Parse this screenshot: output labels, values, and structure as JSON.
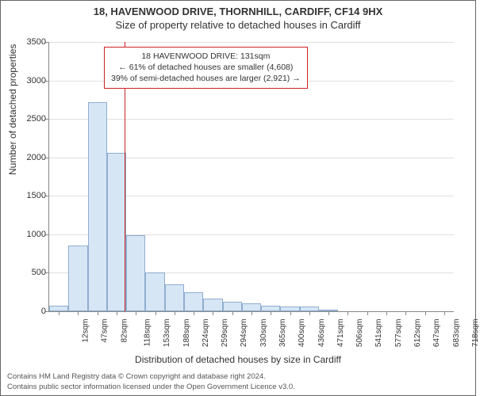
{
  "title_main": "18, HAVENWOOD DRIVE, THORNHILL, CARDIFF, CF14 9HX",
  "title_sub": "Size of property relative to detached houses in Cardiff",
  "ylabel": "Number of detached properties",
  "xlabel": "Distribution of detached houses by size in Cardiff",
  "chart": {
    "type": "histogram",
    "ylim": [
      0,
      3500
    ],
    "ytick_step": 500,
    "categories": [
      "12sqm",
      "47sqm",
      "82sqm",
      "118sqm",
      "153sqm",
      "188sqm",
      "224sqm",
      "259sqm",
      "294sqm",
      "330sqm",
      "365sqm",
      "400sqm",
      "436sqm",
      "471sqm",
      "506sqm",
      "541sqm",
      "577sqm",
      "612sqm",
      "647sqm",
      "683sqm",
      "718sqm"
    ],
    "values": [
      70,
      850,
      2720,
      2060,
      990,
      500,
      350,
      250,
      170,
      120,
      100,
      70,
      60,
      60,
      6,
      3,
      3,
      3,
      2,
      2,
      2
    ],
    "bar_fill": "#d6e6f5",
    "bar_border": "#8faed0",
    "grid_color": "#e0e0e0",
    "background_color": "#ffffff",
    "bar_width_ratio": 1.0,
    "marker_value_sqm": 131,
    "marker_color": "#cc2222",
    "label_fontsize": 12,
    "tick_fontsize": 11
  },
  "annotation": {
    "line1": "18 HAVENWOOD DRIVE: 131sqm",
    "line2": "← 61% of detached houses are smaller (4,608)",
    "line3": "39% of semi-detached houses are larger (2,921) →",
    "border_color": "#cc2222"
  },
  "attribution": {
    "line1": "Contains HM Land Registry data © Crown copyright and database right 2024.",
    "line2": "Contains public sector information licensed under the Open Government Licence v3.0."
  }
}
